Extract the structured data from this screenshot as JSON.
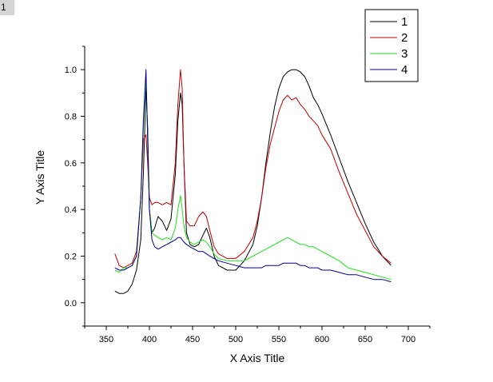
{
  "corner_label": "1",
  "chart_data": {
    "type": "line",
    "title": "",
    "xlabel": "X Axis Title",
    "ylabel": "Y Axis Title",
    "xlim": [
      325,
      725
    ],
    "ylim": [
      -0.1,
      1.1
    ],
    "xticks": [
      350,
      400,
      450,
      500,
      550,
      600,
      650,
      700
    ],
    "yticks": [
      0.0,
      0.2,
      0.4,
      0.6,
      0.8,
      1.0
    ],
    "xtick_labels": [
      "350",
      "400",
      "450",
      "500",
      "550",
      "600",
      "650",
      "700"
    ],
    "ytick_labels": [
      "0.0",
      "0.2",
      "0.4",
      "0.6",
      "0.8",
      "1.0"
    ],
    "grid": false,
    "legend_position": "top-right",
    "series": [
      {
        "name": "1",
        "color": "#000000",
        "x": [
          360,
          365,
          370,
          375,
          380,
          385,
          390,
          393,
          396,
          398,
          400,
          403,
          406,
          410,
          415,
          420,
          425,
          430,
          433,
          436,
          438,
          440,
          443,
          447,
          452,
          457,
          462,
          466,
          470,
          475,
          480,
          490,
          500,
          510,
          520,
          525,
          530,
          535,
          540,
          545,
          550,
          555,
          560,
          565,
          570,
          575,
          580,
          585,
          590,
          595,
          600,
          610,
          620,
          630,
          640,
          650,
          660,
          670,
          680
        ],
        "y": [
          0.05,
          0.04,
          0.04,
          0.05,
          0.08,
          0.14,
          0.27,
          0.55,
          0.92,
          0.75,
          0.4,
          0.3,
          0.32,
          0.37,
          0.35,
          0.31,
          0.36,
          0.55,
          0.78,
          0.9,
          0.85,
          0.6,
          0.3,
          0.25,
          0.24,
          0.25,
          0.29,
          0.32,
          0.28,
          0.2,
          0.16,
          0.14,
          0.14,
          0.18,
          0.25,
          0.33,
          0.45,
          0.6,
          0.73,
          0.84,
          0.92,
          0.97,
          0.99,
          1.0,
          1.0,
          0.99,
          0.97,
          0.93,
          0.88,
          0.85,
          0.81,
          0.72,
          0.62,
          0.52,
          0.43,
          0.34,
          0.26,
          0.2,
          0.16
        ]
      },
      {
        "name": "2",
        "color": "#c00000",
        "x": [
          360,
          365,
          370,
          375,
          380,
          385,
          390,
          393,
          396,
          398,
          400,
          403,
          406,
          410,
          415,
          420,
          425,
          430,
          433,
          436,
          438,
          440,
          443,
          447,
          452,
          457,
          462,
          466,
          470,
          475,
          480,
          490,
          500,
          510,
          520,
          525,
          530,
          535,
          540,
          545,
          550,
          555,
          560,
          565,
          570,
          575,
          580,
          585,
          590,
          595,
          600,
          610,
          620,
          630,
          640,
          650,
          660,
          670,
          680
        ],
        "y": [
          0.21,
          0.16,
          0.15,
          0.16,
          0.17,
          0.22,
          0.45,
          0.7,
          0.72,
          0.6,
          0.45,
          0.42,
          0.43,
          0.43,
          0.42,
          0.43,
          0.42,
          0.6,
          0.85,
          1.0,
          0.92,
          0.6,
          0.35,
          0.33,
          0.33,
          0.37,
          0.39,
          0.37,
          0.31,
          0.24,
          0.21,
          0.19,
          0.19,
          0.22,
          0.28,
          0.35,
          0.45,
          0.58,
          0.68,
          0.75,
          0.82,
          0.87,
          0.89,
          0.87,
          0.88,
          0.85,
          0.83,
          0.8,
          0.78,
          0.76,
          0.72,
          0.66,
          0.56,
          0.47,
          0.38,
          0.31,
          0.24,
          0.2,
          0.17
        ]
      },
      {
        "name": "3",
        "color": "#22dd22",
        "x": [
          360,
          365,
          370,
          375,
          380,
          385,
          390,
          393,
          396,
          398,
          400,
          403,
          406,
          410,
          415,
          420,
          425,
          430,
          433,
          436,
          438,
          440,
          443,
          447,
          452,
          457,
          462,
          466,
          470,
          475,
          480,
          490,
          500,
          510,
          520,
          525,
          530,
          535,
          540,
          545,
          550,
          555,
          560,
          565,
          570,
          575,
          580,
          585,
          590,
          595,
          600,
          610,
          620,
          630,
          640,
          650,
          660,
          670,
          680
        ],
        "y": [
          0.14,
          0.13,
          0.15,
          0.15,
          0.16,
          0.2,
          0.45,
          0.75,
          0.98,
          0.7,
          0.4,
          0.3,
          0.29,
          0.28,
          0.27,
          0.28,
          0.27,
          0.32,
          0.4,
          0.46,
          0.4,
          0.33,
          0.28,
          0.26,
          0.25,
          0.26,
          0.27,
          0.26,
          0.24,
          0.21,
          0.19,
          0.18,
          0.18,
          0.18,
          0.2,
          0.21,
          0.22,
          0.23,
          0.24,
          0.25,
          0.26,
          0.27,
          0.28,
          0.27,
          0.26,
          0.25,
          0.25,
          0.24,
          0.24,
          0.23,
          0.22,
          0.2,
          0.18,
          0.15,
          0.14,
          0.13,
          0.12,
          0.11,
          0.1
        ]
      },
      {
        "name": "4",
        "color": "#00008b",
        "x": [
          360,
          365,
          370,
          375,
          380,
          385,
          390,
          393,
          396,
          398,
          400,
          403,
          406,
          410,
          415,
          420,
          425,
          430,
          433,
          436,
          438,
          440,
          443,
          447,
          452,
          457,
          462,
          466,
          470,
          475,
          480,
          490,
          500,
          510,
          520,
          525,
          530,
          535,
          540,
          545,
          550,
          555,
          560,
          565,
          570,
          575,
          580,
          585,
          590,
          595,
          600,
          610,
          620,
          630,
          640,
          650,
          660,
          670,
          680
        ],
        "y": [
          0.15,
          0.14,
          0.14,
          0.15,
          0.16,
          0.2,
          0.45,
          0.78,
          1.0,
          0.7,
          0.4,
          0.27,
          0.24,
          0.23,
          0.24,
          0.25,
          0.26,
          0.27,
          0.28,
          0.28,
          0.27,
          0.26,
          0.25,
          0.24,
          0.23,
          0.22,
          0.22,
          0.21,
          0.2,
          0.19,
          0.18,
          0.17,
          0.16,
          0.15,
          0.15,
          0.15,
          0.15,
          0.16,
          0.16,
          0.16,
          0.16,
          0.17,
          0.17,
          0.17,
          0.17,
          0.16,
          0.16,
          0.15,
          0.15,
          0.15,
          0.14,
          0.14,
          0.13,
          0.12,
          0.12,
          0.11,
          0.1,
          0.1,
          0.09
        ]
      }
    ]
  }
}
